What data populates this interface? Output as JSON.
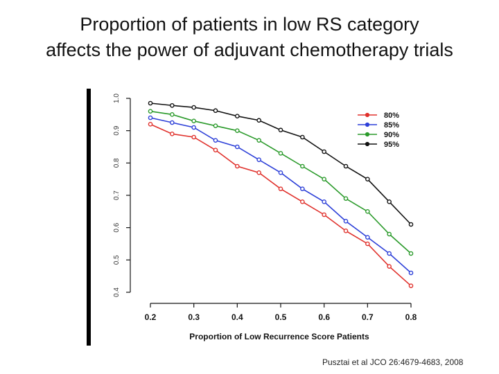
{
  "slide": {
    "title_line1": "Proportion of patients in low RS category",
    "title_line2": "affects the power of adjuvant chemotherapy trials",
    "citation": "Pusztai et al JCO 26:4679-4683, 2008"
  },
  "chart_data": {
    "type": "line",
    "title": "",
    "xlabel": "Proportion of Low Recurrence Score Patients",
    "ylabel": "",
    "x": [
      0.2,
      0.25,
      0.3,
      0.35,
      0.4,
      0.45,
      0.5,
      0.55,
      0.6,
      0.65,
      0.7,
      0.75,
      0.8
    ],
    "xticks": [
      "0.2",
      "0.3",
      "0.4",
      "0.5",
      "0.6",
      "0.7",
      "0.8"
    ],
    "yticks": [
      "0.4",
      "0.5",
      "0.6",
      "0.7",
      "0.8",
      "0.9",
      "1.0"
    ],
    "xlim": [
      0.2,
      0.8
    ],
    "ylim": [
      0.4,
      1.0
    ],
    "grid": false,
    "legend_position": "top-right",
    "series": [
      {
        "name": "80%",
        "color": "#e0302b",
        "values": [
          0.92,
          0.89,
          0.88,
          0.84,
          0.79,
          0.77,
          0.72,
          0.68,
          0.64,
          0.59,
          0.55,
          0.48,
          0.42
        ]
      },
      {
        "name": "85%",
        "color": "#2c3fd8",
        "values": [
          0.94,
          0.925,
          0.91,
          0.87,
          0.85,
          0.81,
          0.77,
          0.72,
          0.68,
          0.62,
          0.57,
          0.52,
          0.46
        ]
      },
      {
        "name": "90%",
        "color": "#2a9a2a",
        "values": [
          0.96,
          0.95,
          0.93,
          0.915,
          0.9,
          0.87,
          0.83,
          0.79,
          0.75,
          0.69,
          0.65,
          0.58,
          0.52
        ]
      },
      {
        "name": "95%",
        "color": "#111111",
        "values": [
          0.985,
          0.978,
          0.972,
          0.962,
          0.945,
          0.932,
          0.902,
          0.88,
          0.835,
          0.79,
          0.75,
          0.68,
          0.61
        ]
      }
    ]
  }
}
